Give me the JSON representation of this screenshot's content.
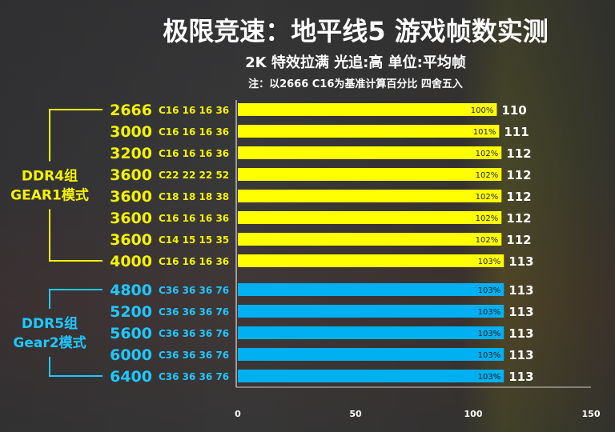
{
  "title": "极限竞速：地平线5 游戏帧数实测",
  "subtitle": "2K  特效拉满  光追:高  单位:平均帧",
  "note": "注：以2666 C16为基准计算百分比 四舍五入",
  "colors": {
    "ddr4": "#ffff00",
    "ddr5": "#00b0f0",
    "ddr4_text": "#f3f300",
    "ddr5_text": "#1ec8ff"
  },
  "chart_data": {
    "type": "bar",
    "orientation": "horizontal",
    "title": "极限竞速：地平线5 游戏帧数实测",
    "xlim": [
      0,
      150
    ],
    "xticks": [
      0,
      50,
      100,
      150
    ],
    "groups": [
      {
        "label_line1": "DDR4组",
        "label_line2": "GEAR1模式",
        "rows": [
          {
            "speed": "2666",
            "timing": "C16 16 16 36",
            "value": 110,
            "pct": "100%"
          },
          {
            "speed": "3000",
            "timing": "C16 16 16 36",
            "value": 111,
            "pct": "101%"
          },
          {
            "speed": "3200",
            "timing": "C16 16 16 36",
            "value": 112,
            "pct": "102%"
          },
          {
            "speed": "3600",
            "timing": "C22 22 22 52",
            "value": 112,
            "pct": "102%"
          },
          {
            "speed": "3600",
            "timing": "C18 18 18 38",
            "value": 112,
            "pct": "102%"
          },
          {
            "speed": "3600",
            "timing": "C16 16 16 36",
            "value": 112,
            "pct": "102%"
          },
          {
            "speed": "3600",
            "timing": "C14 15 15 35",
            "value": 112,
            "pct": "102%"
          },
          {
            "speed": "4000",
            "timing": "C16 16 16 36",
            "value": 113,
            "pct": "103%"
          }
        ]
      },
      {
        "label_line1": "DDR5组",
        "label_line2": "Gear2模式",
        "rows": [
          {
            "speed": "4800",
            "timing": "C36 36 36 76",
            "value": 113,
            "pct": "103%"
          },
          {
            "speed": "5200",
            "timing": "C36 36 36 76",
            "value": 113,
            "pct": "103%"
          },
          {
            "speed": "5600",
            "timing": "C36 36 36 76",
            "value": 113,
            "pct": "103%"
          },
          {
            "speed": "6000",
            "timing": "C36 36 36 76",
            "value": 113,
            "pct": "103%"
          },
          {
            "speed": "6400",
            "timing": "C36 36 36 76",
            "value": 113,
            "pct": "103%"
          }
        ]
      }
    ]
  }
}
